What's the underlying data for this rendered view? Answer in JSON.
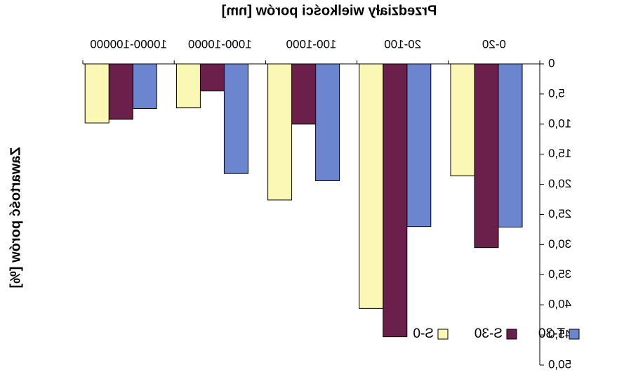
{
  "chart_data": {
    "type": "bar",
    "title": "Przedziały wielkości porów [nm]",
    "ylabel": "Zawartość porów [%]",
    "xlabel": "",
    "categories": [
      "0-20",
      "20-100",
      "100-1000",
      "1000-10000",
      "10000-100000"
    ],
    "series": [
      {
        "name": "T-30",
        "color": "#6b86cf",
        "values": [
          27.1,
          27.0,
          19.4,
          18.2,
          7.4
        ]
      },
      {
        "name": "S-30",
        "color": "#6b1f4b",
        "values": [
          30.5,
          45.3,
          10.0,
          4.5,
          9.2
        ]
      },
      {
        "name": "S-0",
        "color": "#fbf7b5",
        "values": [
          18.6,
          40.6,
          22.6,
          7.3,
          9.8
        ]
      }
    ],
    "yticks": [
      "0",
      "5,0",
      "10,0",
      "15,0",
      "20,0",
      "25,0",
      "30,0",
      "35,0",
      "40,0",
      "45,0",
      "50,0"
    ],
    "ylim": [
      0,
      50
    ],
    "y_inverted": true,
    "x_axis_position": "top",
    "legend_position": "bottom-right",
    "grid": false,
    "mirrored_horizontally": true
  }
}
